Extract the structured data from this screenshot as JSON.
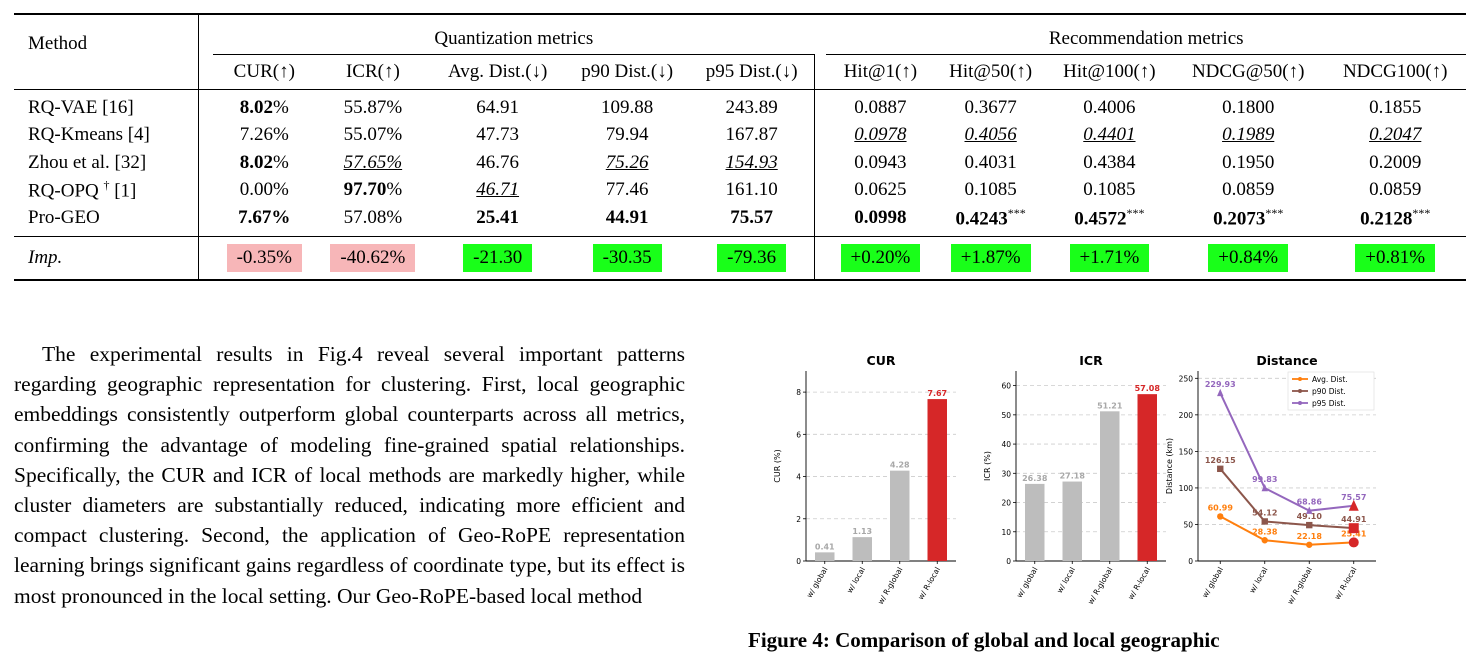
{
  "table": {
    "method_header": "Method",
    "group_quant": "Quantization metrics",
    "group_rec": "Recommendation metrics",
    "columns": [
      "CUR(↑)",
      "ICR(↑)",
      "Avg. Dist.(↓)",
      "p90 Dist.(↓)",
      "p95 Dist.(↓)",
      "Hit@1(↑)",
      "Hit@50(↑)",
      "Hit@100(↑)",
      "NDCG@50(↑)",
      "NDCG100(↑)"
    ],
    "rows": [
      {
        "method": "RQ-VAE [16]",
        "cells": [
          {
            "v": "8.02",
            "u": "%",
            "s": "b"
          },
          {
            "v": "55.87",
            "u": "%"
          },
          {
            "v": "64.91"
          },
          {
            "v": "109.88"
          },
          {
            "v": "243.89"
          },
          {
            "v": "0.0887"
          },
          {
            "v": "0.3677"
          },
          {
            "v": "0.4006"
          },
          {
            "v": "0.1800"
          },
          {
            "v": "0.1855"
          }
        ]
      },
      {
        "method": "RQ-Kmeans [4]",
        "cells": [
          {
            "v": "7.26",
            "u": "%"
          },
          {
            "v": "55.07",
            "u": "%"
          },
          {
            "v": "47.73"
          },
          {
            "v": "79.94"
          },
          {
            "v": "167.87"
          },
          {
            "v": "0.0978",
            "s": "u"
          },
          {
            "v": "0.4056",
            "s": "u"
          },
          {
            "v": "0.4401",
            "s": "u"
          },
          {
            "v": "0.1989",
            "s": "u"
          },
          {
            "v": "0.2047",
            "s": "u"
          }
        ]
      },
      {
        "method": "Zhou et al. [32]",
        "cells": [
          {
            "v": "8.02",
            "u": "%",
            "s": "b"
          },
          {
            "v": "57.65%",
            "s": "u"
          },
          {
            "v": "46.76"
          },
          {
            "v": "75.26",
            "s": "u"
          },
          {
            "v": "154.93",
            "s": "u"
          },
          {
            "v": "0.0943"
          },
          {
            "v": "0.4031"
          },
          {
            "v": "0.4384"
          },
          {
            "v": "0.1950"
          },
          {
            "v": "0.2009"
          }
        ]
      },
      {
        "method": "RQ-OPQ",
        "dagger": "†",
        "ref": "[1]",
        "cells": [
          {
            "v": "0.00%"
          },
          {
            "v": "97.70",
            "u": "%",
            "s": "b"
          },
          {
            "v": "46.71",
            "s": "u"
          },
          {
            "v": "77.46"
          },
          {
            "v": "161.10"
          },
          {
            "v": "0.0625"
          },
          {
            "v": "0.1085"
          },
          {
            "v": "0.1085"
          },
          {
            "v": "0.0859"
          },
          {
            "v": "0.0859"
          }
        ]
      },
      {
        "method": "Pro-GEO",
        "cells": [
          {
            "v": "7.67%",
            "s": "b"
          },
          {
            "v": "57.08%"
          },
          {
            "v": "25.41",
            "s": "b"
          },
          {
            "v": "44.91",
            "s": "b"
          },
          {
            "v": "75.57",
            "s": "b"
          },
          {
            "v": "0.0998",
            "s": "b"
          },
          {
            "v": "0.4243",
            "s": "b",
            "sup": "***"
          },
          {
            "v": "0.4572",
            "s": "b",
            "sup": "***"
          },
          {
            "v": "0.2073",
            "s": "b",
            "sup": "***"
          },
          {
            "v": "0.2128",
            "s": "b",
            "sup": "***"
          }
        ]
      }
    ],
    "imp": {
      "label": "Imp.",
      "values": [
        "-0.35%",
        "-40.62%",
        "-21.30",
        "-30.35",
        "-79.36",
        "+0.20%",
        "+1.87%",
        "+1.71%",
        "+0.84%",
        "+0.81%"
      ],
      "signs": [
        "neg",
        "neg",
        "pos",
        "pos",
        "pos",
        "pos",
        "pos",
        "pos",
        "pos",
        "pos"
      ]
    }
  },
  "body_text": "The experimental results in Fig.4 reveal several important patterns regarding geographic representation for clustering. First, local geographic embeddings consistently outperform global counterparts across all metrics, confirming the advantage of modeling fine-grained spatial relationships. Specifically, the CUR and ICR of local methods are markedly higher, while cluster diameters are substantially reduced, indicating more efficient and compact clustering. Second, the application of Geo-RoPE representation learning brings significant gains regardless of coordinate type, but its effect is most pronounced in the local setting. Our Geo-RoPE-based local method",
  "caption": "Figure 4: Comparison of global and local geographic",
  "colors": {
    "bar_gray": "#bdbdbd",
    "bar_red": "#d62728",
    "avg": "#ff7f0e",
    "p90": "#8c564b",
    "p95": "#9467bd",
    "pos_bg": "#19ff19",
    "neg_bg": "#f7b6b8"
  },
  "chart_data": [
    {
      "type": "bar",
      "title": "CUR",
      "ylabel": "CUR (%)",
      "categories": [
        "w/ global",
        "w/ local",
        "w/ R-global",
        "w/ R-local"
      ],
      "values": [
        0.41,
        1.13,
        4.28,
        7.67
      ],
      "labels": [
        "0.41",
        "1.13",
        "4.28",
        "7.67"
      ],
      "ylim": [
        0,
        9
      ],
      "yticks": [
        0,
        2,
        4,
        6,
        8
      ],
      "grid": true
    },
    {
      "type": "bar",
      "title": "ICR",
      "ylabel": "ICR (%)",
      "categories": [
        "w/ global",
        "w/ local",
        "w/ R-global",
        "w/ R-local"
      ],
      "values": [
        26.38,
        27.18,
        51.21,
        57.08
      ],
      "labels": [
        "26.38",
        "27.18",
        "51.21",
        "57.08"
      ],
      "ylim": [
        0,
        65
      ],
      "yticks": [
        0,
        10,
        20,
        30,
        40,
        50,
        60
      ],
      "grid": true
    },
    {
      "type": "line",
      "title": "Distance",
      "ylabel": "Distance (km)",
      "categories": [
        "w/ global",
        "w/ local",
        "w/ R-global",
        "w/ R-local"
      ],
      "ylim": [
        0,
        260
      ],
      "yticks": [
        0,
        50,
        100,
        150,
        200,
        250
      ],
      "legend": "top-right",
      "grid": true,
      "series": [
        {
          "name": "Avg. Dist.",
          "values": [
            60.99,
            28.38,
            22.18,
            25.41
          ],
          "labels": [
            "60.99",
            "28.38",
            "22.18",
            "25.41"
          ],
          "marker": "circle"
        },
        {
          "name": "p90 Dist.",
          "values": [
            126.15,
            54.12,
            49.1,
            44.91
          ],
          "labels": [
            "126.15",
            "54.12",
            "49.10",
            "44.91"
          ],
          "marker": "square"
        },
        {
          "name": "p95 Dist.",
          "values": [
            229.93,
            99.83,
            68.86,
            75.57
          ],
          "labels": [
            "229.93",
            "99.83",
            "68.86",
            "75.57"
          ],
          "marker": "triangle"
        }
      ]
    }
  ]
}
